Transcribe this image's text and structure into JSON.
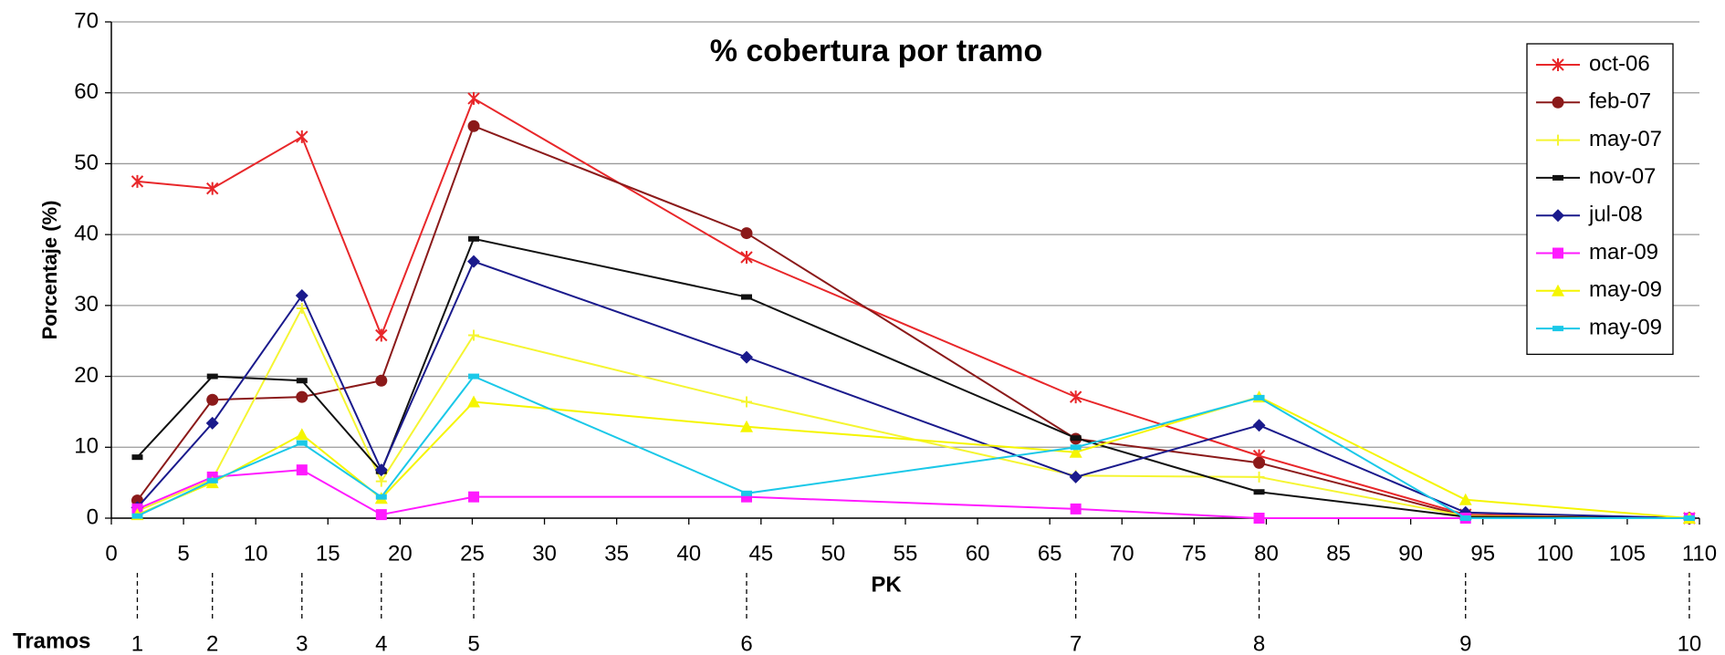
{
  "chart_data": {
    "type": "line",
    "title": "% cobertura por tramo",
    "x_label": "PK",
    "y_label": "Porcentaje (%)",
    "tramos_label": "Tramos",
    "tramos": [
      1,
      2,
      3,
      4,
      5,
      6,
      7,
      8,
      9,
      10
    ],
    "x": [
      1.8,
      7.0,
      13.2,
      18.7,
      25.1,
      44.0,
      66.8,
      79.5,
      93.8,
      109.3
    ],
    "xlim": [
      0,
      110
    ],
    "xticks": [
      0,
      5,
      10,
      15,
      20,
      25,
      30,
      35,
      40,
      45,
      50,
      55,
      60,
      65,
      70,
      75,
      80,
      85,
      90,
      95,
      100,
      105,
      110
    ],
    "ylim": [
      0,
      70
    ],
    "yticks": [
      0,
      10,
      20,
      30,
      40,
      50,
      60,
      70
    ],
    "grid": true,
    "legend": "upper right",
    "series": [
      {
        "name": "oct-06",
        "color": "#e8272a",
        "marker": "star",
        "values": [
          47.5,
          46.5,
          53.8,
          25.8,
          59.2,
          36.8,
          17.1,
          8.8,
          0.5,
          0
        ]
      },
      {
        "name": "feb-07",
        "color": "#8b1a1a",
        "marker": "circle",
        "values": [
          2.5,
          16.7,
          17.1,
          19.4,
          55.3,
          40.2,
          11.2,
          7.8,
          0.3,
          0
        ]
      },
      {
        "name": "may-07",
        "color": "#f5f532",
        "marker": "plus",
        "values": [
          1.0,
          5.5,
          29.6,
          5.2,
          25.8,
          16.4,
          6.0,
          5.8,
          0.3,
          0
        ]
      },
      {
        "name": "nov-07",
        "color": "#111111",
        "marker": "dash",
        "values": [
          8.6,
          20.0,
          19.4,
          6.6,
          39.4,
          31.2,
          11.3,
          3.7,
          0.2,
          0
        ]
      },
      {
        "name": "jul-08",
        "color": "#1a1a8c",
        "marker": "diamond",
        "values": [
          1.5,
          13.4,
          31.4,
          6.8,
          36.2,
          22.7,
          5.8,
          13.1,
          0.8,
          0
        ]
      },
      {
        "name": "mar-09",
        "color": "#ff1aff",
        "marker": "square",
        "values": [
          1.3,
          5.8,
          6.8,
          0.5,
          3.0,
          3.0,
          1.3,
          0,
          0,
          0
        ]
      },
      {
        "name": "may-09",
        "color": "#f5f500",
        "marker": "triangle",
        "values": [
          0.5,
          5.0,
          11.8,
          2.8,
          16.4,
          12.9,
          9.3,
          17.1,
          2.6,
          0
        ]
      },
      {
        "name": "may-09",
        "color": "#1ac8e8",
        "marker": "dash",
        "values": [
          0.3,
          5.3,
          10.6,
          3.0,
          20.0,
          3.5,
          10.0,
          17.0,
          0,
          0
        ]
      }
    ]
  }
}
